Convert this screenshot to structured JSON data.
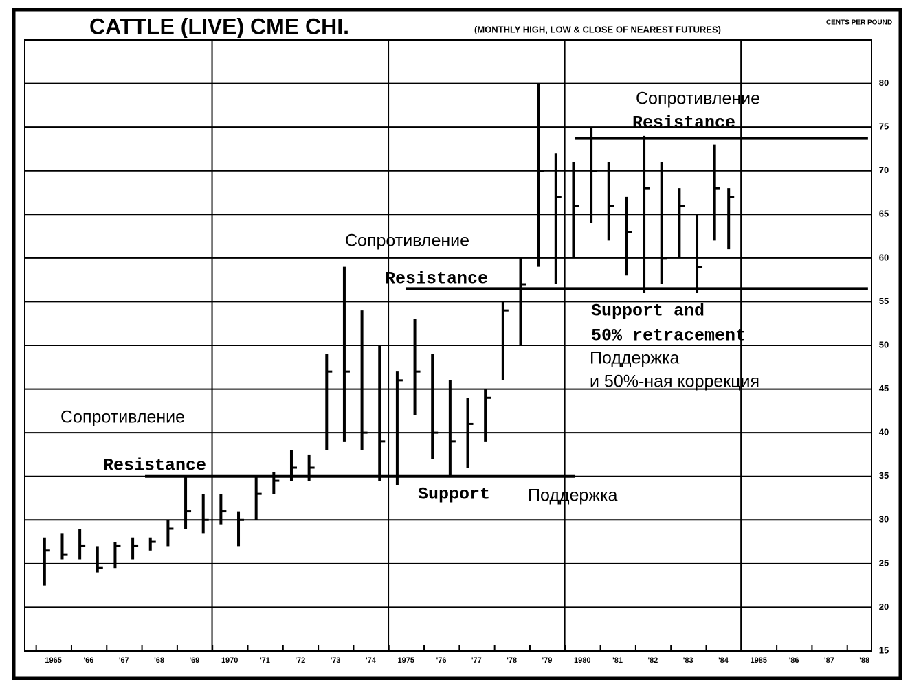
{
  "chart_data": {
    "type": "hlc",
    "title": "CATTLE (LIVE) CME CHI.",
    "subtitle": "(MONTHLY HIGH, LOW & CLOSE OF NEAREST FUTURES)",
    "units": "CENTS PER POUND",
    "color": "#000000",
    "grid": true,
    "xlim": [
      1965,
      1988.7
    ],
    "ylim": [
      15,
      85
    ],
    "yticks": [
      15,
      20,
      25,
      30,
      35,
      40,
      45,
      50,
      55,
      60,
      65,
      70,
      75,
      80
    ],
    "x_gridlines": [
      1970,
      1975,
      1980,
      1985
    ],
    "xticks": [
      {
        "value": 1965.5,
        "label": "1965"
      },
      {
        "value": 1966.5,
        "label": "'66"
      },
      {
        "value": 1967.5,
        "label": "'67"
      },
      {
        "value": 1968.5,
        "label": "'68"
      },
      {
        "value": 1969.5,
        "label": "'69"
      },
      {
        "value": 1970.5,
        "label": "1970"
      },
      {
        "value": 1971.5,
        "label": "'71"
      },
      {
        "value": 1972.5,
        "label": "'72"
      },
      {
        "value": 1973.5,
        "label": "'73"
      },
      {
        "value": 1974.5,
        "label": "'74"
      },
      {
        "value": 1975.5,
        "label": "1975"
      },
      {
        "value": 1976.5,
        "label": "'76"
      },
      {
        "value": 1977.5,
        "label": "'77"
      },
      {
        "value": 1978.5,
        "label": "'78"
      },
      {
        "value": 1979.5,
        "label": "'79"
      },
      {
        "value": 1980.5,
        "label": "1980"
      },
      {
        "value": 1981.5,
        "label": "'81"
      },
      {
        "value": 1982.5,
        "label": "'82"
      },
      {
        "value": 1983.5,
        "label": "'83"
      },
      {
        "value": 1984.5,
        "label": "'84"
      },
      {
        "value": 1985.5,
        "label": "1985"
      },
      {
        "value": 1986.5,
        "label": "'86"
      },
      {
        "value": 1987.5,
        "label": "'87"
      },
      {
        "value": 1988.5,
        "label": "'88"
      }
    ],
    "x": [
      1965.25,
      1965.75,
      1966.25,
      1966.75,
      1967.25,
      1967.75,
      1968.25,
      1968.75,
      1969.25,
      1969.75,
      1970.25,
      1970.75,
      1971.25,
      1971.75,
      1972.25,
      1972.75,
      1973.25,
      1973.75,
      1974.25,
      1974.75,
      1975.25,
      1975.75,
      1976.25,
      1976.75,
      1977.25,
      1977.75,
      1978.25,
      1978.75,
      1979.25,
      1979.75,
      1980.25,
      1980.75,
      1981.25,
      1981.75,
      1982.25,
      1982.75,
      1983.25,
      1983.75,
      1984.25,
      1984.65
    ],
    "high": [
      28,
      28.5,
      29,
      27,
      27.5,
      28,
      28,
      30,
      35,
      33,
      33,
      31,
      35,
      35.5,
      38,
      37.5,
      49,
      59,
      54,
      50,
      47,
      53,
      49,
      46,
      44,
      45,
      55,
      60,
      80,
      72,
      71,
      75,
      71,
      67,
      74,
      71,
      68,
      65,
      73,
      68
    ],
    "low": [
      22.5,
      25.5,
      25.5,
      24,
      24.5,
      25.5,
      26.5,
      27,
      29,
      28.5,
      29.5,
      27,
      30,
      33,
      34.5,
      34.5,
      38,
      39,
      38,
      34.5,
      34,
      42,
      37,
      35,
      36,
      39,
      46,
      50,
      59,
      57,
      60,
      64,
      62,
      58,
      56,
      57,
      60,
      56,
      62,
      61
    ],
    "close": [
      26.5,
      26,
      27,
      24.5,
      27,
      27,
      27.5,
      29,
      31,
      30,
      31,
      30,
      33,
      34.5,
      36,
      36,
      47,
      47,
      40,
      39,
      46,
      47,
      40,
      39,
      41,
      44,
      54,
      57,
      70,
      67,
      66,
      70,
      66,
      63,
      68,
      60,
      66,
      59,
      68,
      67
    ],
    "reference_lines": [
      {
        "value": 35,
        "x": [
          1968.1,
          1980.3
        ]
      },
      {
        "value": 56.5,
        "x": [
          1975.5,
          1988.6
        ]
      },
      {
        "value": 73.7,
        "x": [
          1980.3,
          1988.6
        ]
      }
    ],
    "annotations": [
      "Сопротивление",
      "Resistance",
      "Support",
      "Поддержка",
      "Сопротивление",
      "Resistance",
      "Support and",
      "50% retracement",
      "Поддержка",
      "и 50%-ная коррекция",
      "Сопротивление",
      "Resistance"
    ]
  }
}
